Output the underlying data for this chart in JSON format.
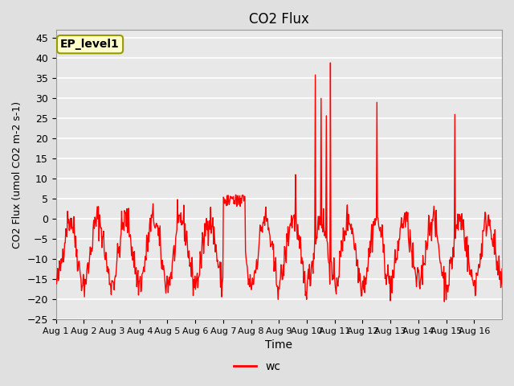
{
  "title": "CO2 Flux",
  "xlabel": "Time",
  "ylabel": "CO2 Flux (umol CO2 m-2 s-1)",
  "ylim": [
    -25,
    47
  ],
  "yticks": [
    -25,
    -20,
    -15,
    -10,
    -5,
    0,
    5,
    10,
    15,
    20,
    25,
    30,
    35,
    40,
    45
  ],
  "line_color": "#ff0000",
  "line_width": 1.0,
  "bg_color": "#e8e8e8",
  "grid_color": "#ffffff",
  "legend_label": "wc",
  "annotation_text": "EP_level1",
  "annotation_bg": "#ffffcc",
  "annotation_border": "#999900",
  "xtick_labels": [
    "Aug 1",
    "Aug 2",
    "Aug 3",
    "Aug 4",
    "Aug 5",
    "Aug 6",
    "Aug 7",
    "Aug 8",
    "Aug 9",
    "Aug 10",
    "Aug 11",
    "Aug 12",
    "Aug 13",
    "Aug 14",
    "Aug 15",
    "Aug 16"
  ],
  "xtick_positions": [
    0,
    1,
    2,
    3,
    4,
    5,
    6,
    7,
    8,
    9,
    10,
    11,
    12,
    13,
    14,
    15
  ],
  "num_days": 16
}
